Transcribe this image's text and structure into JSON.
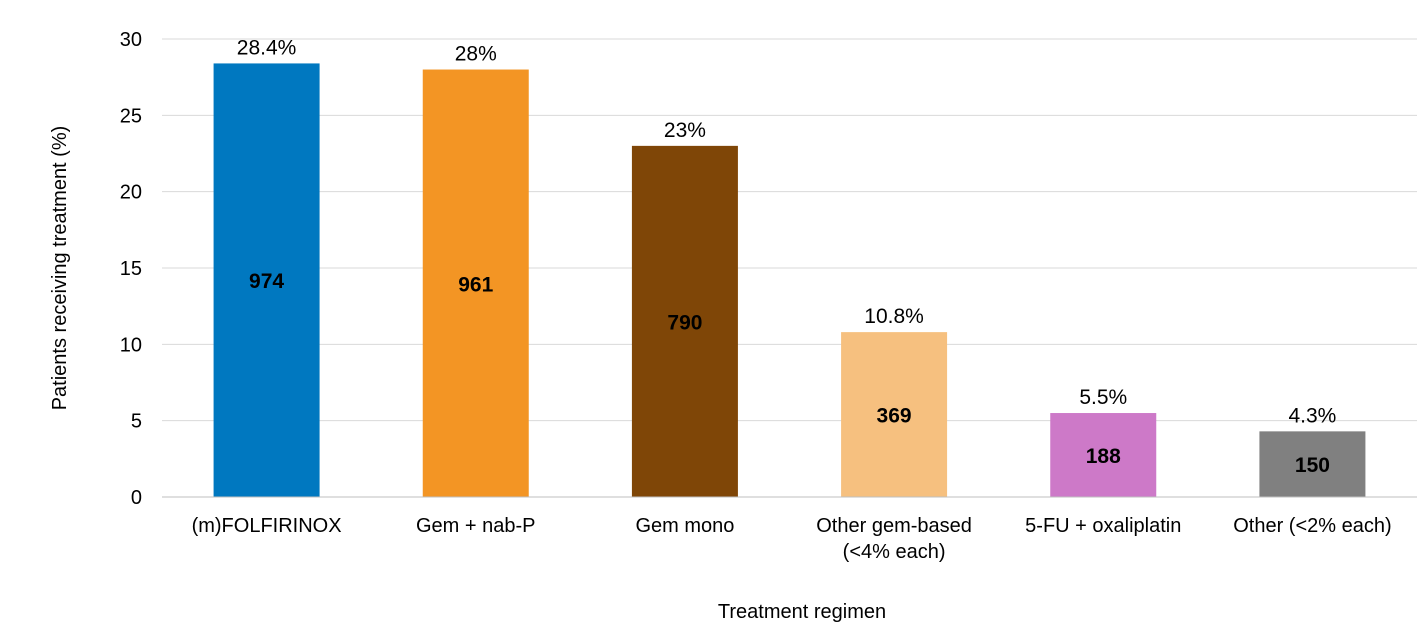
{
  "chart_data": {
    "type": "bar",
    "title": "",
    "xlabel": "Treatment regimen",
    "ylabel": "Patients receiving treatment (%)",
    "ylim": [
      0,
      30
    ],
    "yticks": [
      0,
      5,
      10,
      15,
      20,
      25,
      30
    ],
    "grid": true,
    "categories": [
      [
        "(m)FOLFIRINOX"
      ],
      [
        "Gem + nab-P"
      ],
      [
        "Gem mono"
      ],
      [
        "Other gem-based",
        "(<4% each)"
      ],
      [
        "5-FU + oxaliplatin"
      ],
      [
        "Other (<2% each)"
      ]
    ],
    "values": [
      28.4,
      28,
      23,
      10.8,
      5.5,
      4.3
    ],
    "value_labels": [
      "28.4%",
      "28%",
      "23%",
      "10.8%",
      "5.5%",
      "4.3%"
    ],
    "counts": [
      "974",
      "961",
      "790",
      "369",
      "188",
      "150"
    ],
    "colors": [
      "#0078c0",
      "#f39524",
      "#7f4607",
      "#f6c07f",
      "#cd79c8",
      "#808080"
    ]
  }
}
